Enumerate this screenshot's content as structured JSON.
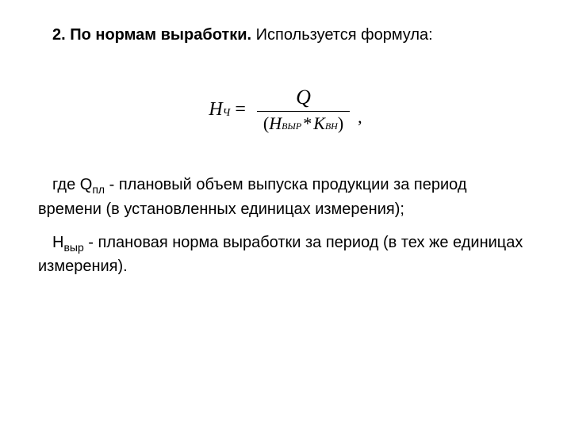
{
  "heading": {
    "bold": "2. По нормам выработки.",
    "rest": " Используется формула:"
  },
  "formula": {
    "lhs_var": "Н",
    "lhs_sub": "Ч",
    "equals": "=",
    "numerator": "Q",
    "denom_open": "(",
    "denom_var1": "Н",
    "denom_sub1": "ВЫР",
    "denom_star": "*",
    "denom_var2": "К",
    "denom_sub2": "ВН",
    "denom_close": ")",
    "trailing_comma": ","
  },
  "para1": {
    "prefix": "где  Q",
    "sub": "пл",
    "rest": " - плановый объем выпуска продукции за период времени (в установленных единицах измерения);"
  },
  "para2": {
    "prefix": "Н",
    "sub": "выр",
    "rest": " - плановая норма выработки за период (в тех же единицах измерения)."
  },
  "style": {
    "background": "#ffffff",
    "text_color": "#000000",
    "body_fontsize": 20,
    "formula_fontsize": 24
  }
}
